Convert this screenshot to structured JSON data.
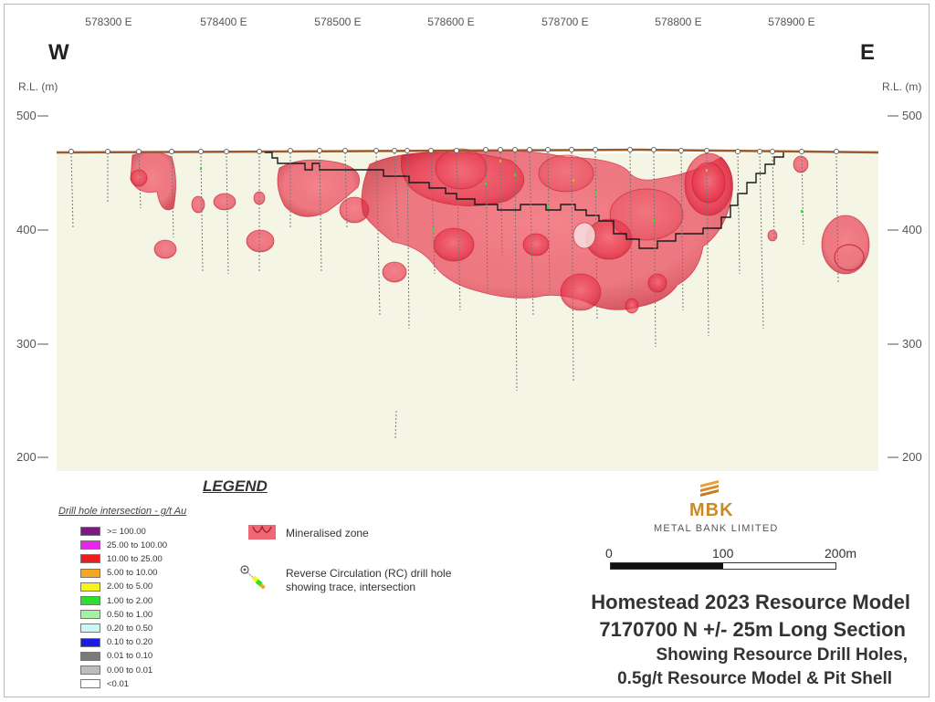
{
  "eastings": [
    "578300 E",
    "578400 E",
    "578500 E",
    "578600 E",
    "578700 E",
    "578800 E",
    "578900 E"
  ],
  "direction": {
    "west": "W",
    "east": "E"
  },
  "rl_label": "R.L. (m)",
  "elevations": [
    "500",
    "400",
    "300",
    "200"
  ],
  "legend": {
    "title": "LEGEND",
    "subtitle": "Drill hole intersection - g/t Au",
    "grades": [
      {
        "label": ">= 100.00",
        "color": "#7b1a82"
      },
      {
        "label": "25.00 to 100.00",
        "color": "#ee22ee"
      },
      {
        "label": "10.00 to 25.00",
        "color": "#ee1c1c"
      },
      {
        "label": "5.00 to 10.00",
        "color": "#f5a623"
      },
      {
        "label": "2.00 to 5.00",
        "color": "#f5f51c"
      },
      {
        "label": "1.00 to 2.00",
        "color": "#2ee02e"
      },
      {
        "label": "0.50 to 1.00",
        "color": "#a6f0a6"
      },
      {
        "label": "0.20 to 0.50",
        "color": "#cdf5f5"
      },
      {
        "label": "0.10 to 0.20",
        "color": "#1c1ce0"
      },
      {
        "label": "0.01 to 0.10",
        "color": "#7a7a7a"
      },
      {
        "label": "0.00 to 0.01",
        "color": "#bdbdbd"
      },
      {
        "label": "<0.01",
        "color": "#ffffff"
      }
    ],
    "mineralised_label": "Mineralised zone",
    "rc_line1": "Reverse Circulation (RC) drill hole",
    "rc_line2": "showing trace, intersection"
  },
  "logo": {
    "name": "MBK",
    "subtitle": "METAL BANK LIMITED"
  },
  "scale": {
    "labels": [
      "0",
      "100",
      "200m"
    ]
  },
  "title": {
    "line1": "Homestead 2023 Resource Model",
    "line2": "7170700 N +/- 25m Long Section",
    "line3": "Showing Resource Drill Holes,",
    "line4": "0.5g/t Resource Model & Pit Shell"
  },
  "colors": {
    "mineralised": "#e8344a",
    "surface": "#9b5a2a",
    "pit_shell": "#1a1a1a",
    "section_bg": "#f5f5e6"
  }
}
